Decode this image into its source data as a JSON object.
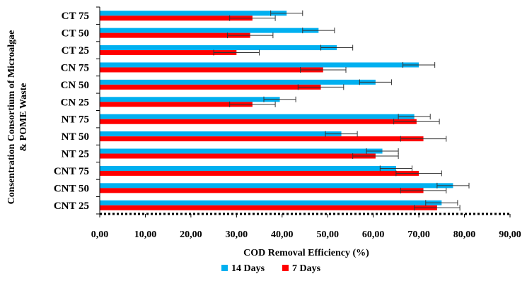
{
  "chart_data": {
    "type": "bar",
    "orientation": "horizontal",
    "categories": [
      "CT 75",
      "CT 50",
      "CT 25",
      "CN 75",
      "CN 50",
      "CN 25",
      "NT 75",
      "NT 50",
      "NT 25",
      "CNT 75",
      "CNT 50",
      "CNT 25"
    ],
    "series": [
      {
        "name": "14 Days",
        "color": "#00B0F0",
        "values": [
          41.0,
          48.0,
          52.0,
          70.0,
          60.5,
          39.5,
          69.0,
          53.0,
          62.0,
          65.0,
          77.5,
          75.0
        ],
        "errors": [
          3.5,
          3.5,
          3.5,
          3.5,
          3.5,
          3.5,
          3.5,
          3.5,
          3.5,
          3.5,
          3.5,
          3.5
        ]
      },
      {
        "name": "7 Days",
        "color": "#FF0000",
        "values": [
          33.5,
          33.0,
          30.0,
          49.0,
          48.5,
          33.5,
          69.5,
          71.0,
          60.5,
          70.0,
          71.0,
          74.0
        ],
        "errors": [
          5.0,
          5.0,
          5.0,
          5.0,
          5.0,
          5.0,
          5.0,
          5.0,
          5.0,
          5.0,
          5.0,
          5.0
        ]
      }
    ],
    "xlabel": "COD Removal Efficiency (%)",
    "ylabel": "Consentration Consortium of Microalgae & POME Waste",
    "xlim": [
      0,
      90
    ],
    "xticks": [
      "0,00",
      "10,00",
      "20,00",
      "30,00",
      "40,00",
      "50,00",
      "60,00",
      "70,00",
      "80,00",
      "90,00"
    ],
    "grid": false,
    "legend_position": "bottom"
  }
}
